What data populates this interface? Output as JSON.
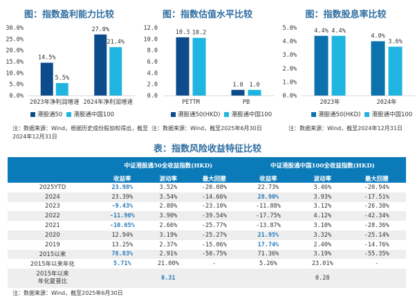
{
  "chart_data": [
    {
      "type": "bar",
      "title": "图：指数盈利能力比较",
      "categories": [
        "2023年净利润增速",
        "2024年净利润增速"
      ],
      "series": [
        {
          "name": "港股通50",
          "values": [
            14.5,
            27.0
          ],
          "labels": [
            "14.5%",
            "27.0%"
          ],
          "color": "#0d4c8c"
        },
        {
          "name": "港股通中国100",
          "values": [
            5.5,
            21.4
          ],
          "labels": [
            "5.5%",
            "21.4%"
          ],
          "color": "#1fb5e0"
        }
      ],
      "yticks": [
        "0.0%",
        "5.0%",
        "10.0%",
        "15.0%",
        "20.0%",
        "25.0%",
        "30.0%"
      ],
      "ylim": [
        0,
        30
      ],
      "xlabel": "",
      "ylabel": "",
      "grid": false,
      "legend": "bottom",
      "note": "注：数据来源：Wind，根据历史成份股加权得出，截至2024年12月31日"
    },
    {
      "type": "bar",
      "title": "图：指数估值水平比较",
      "categories": [
        "PETTM",
        "PB"
      ],
      "series": [
        {
          "name": "港股通50(HKD)",
          "values": [
            10.3,
            1.0
          ],
          "labels": [
            "10.3",
            "1.0"
          ],
          "color": "#0d4c8c"
        },
        {
          "name": "港股通中国100",
          "values": [
            10.2,
            1.0
          ],
          "labels": [
            "10.2",
            "1.0"
          ],
          "color": "#1fb5e0"
        }
      ],
      "yticks": [
        "0.0",
        "2.0",
        "4.0",
        "6.0",
        "8.0",
        "10.0",
        "12.0"
      ],
      "ylim": [
        0,
        12
      ],
      "xlabel": "",
      "ylabel": "",
      "grid": false,
      "legend": "bottom",
      "note": "注：数据来源：Wind，截至2025年6月30日"
    },
    {
      "type": "bar",
      "title": "图：指数股息率比较",
      "categories": [
        "2023年",
        "2024年"
      ],
      "series": [
        {
          "name": "港股通50(HKD)",
          "values": [
            4.4,
            4.0
          ],
          "labels": [
            "4.4%",
            "4.0%"
          ],
          "color": "#0b72ae"
        },
        {
          "name": "港股通中国100",
          "values": [
            4.4,
            3.6
          ],
          "labels": [
            "4.4%",
            "3.6%"
          ],
          "color": "#1fb5e0"
        }
      ],
      "yticks": [
        "0.0%",
        "1.0%",
        "2.0%",
        "3.0%",
        "4.0%",
        "5.0%"
      ],
      "ylim": [
        0,
        5
      ],
      "xlabel": "",
      "ylabel": "",
      "grid": false,
      "legend": "bottom",
      "note": "注：数据来源：Wind，截至2024年12月31日"
    },
    {
      "type": "table",
      "title": "表：指数风险收益特征比较",
      "groups": [
        "中证港股通50全收益指数(HKD)",
        "中证港股通中国100全收益指数(HKD)"
      ],
      "columns": [
        "收益率",
        "波动率",
        "最大回撤",
        "收益率",
        "波动率",
        "最大回撤"
      ],
      "rows": [
        {
          "label": "2025YTD",
          "cells": [
            "23.98%",
            "3.52%",
            "-20.08%",
            "22.73%",
            "3.46%",
            "-20.94%"
          ],
          "highlight": [
            0
          ]
        },
        {
          "label": "2024",
          "cells": [
            "23.39%",
            "3.54%",
            "-14.66%",
            "28.90%",
            "3.93%",
            "-17.51%"
          ],
          "highlight": [
            3
          ]
        },
        {
          "label": "2023",
          "cells": [
            "-9.43%",
            "2.80%",
            "-23.10%",
            "-11.88%",
            "3.12%",
            "-26.38%"
          ],
          "highlight": [
            0
          ]
        },
        {
          "label": "2022",
          "cells": [
            "-11.90%",
            "3.90%",
            "-39.54%",
            "-17.75%",
            "4.12%",
            "-42.34%"
          ],
          "highlight": [
            0
          ]
        },
        {
          "label": "2021",
          "cells": [
            "-10.65%",
            "2.66%",
            "-25.77%",
            "-13.87%",
            "3.10%",
            "-28.36%"
          ],
          "highlight": [
            0
          ]
        },
        {
          "label": "2020",
          "cells": [
            "12.94%",
            "3.19%",
            "-25.27%",
            "21.95%",
            "3.32%",
            "-25.14%"
          ],
          "highlight": [
            3
          ]
        },
        {
          "label": "2019",
          "cells": [
            "13.25%",
            "2.37%",
            "-15.06%",
            "17.74%",
            "2.40%",
            "-14.76%"
          ],
          "highlight": [
            3
          ]
        },
        {
          "label": "2015以来",
          "cells": [
            "78.83%",
            "2.91%",
            "-50.75%",
            "71.36%",
            "3.19%",
            "-55.35%"
          ],
          "highlight": [
            0
          ]
        },
        {
          "label": "2015年以来年化",
          "cells": [
            "5.71%",
            "21.00%",
            "-",
            "5.26%",
            "23.01%",
            "-"
          ],
          "highlight": [
            0
          ]
        },
        {
          "label": "2015年以来\n年化夏普比",
          "label_lines": [
            "2015年以来",
            "年化夏普比"
          ],
          "cells": [
            "",
            "0.31",
            "",
            "",
            "0.28",
            ""
          ],
          "highlight": [
            1
          ]
        }
      ],
      "note": "注：数据来源：Wind，截至2025年6月30日"
    }
  ]
}
